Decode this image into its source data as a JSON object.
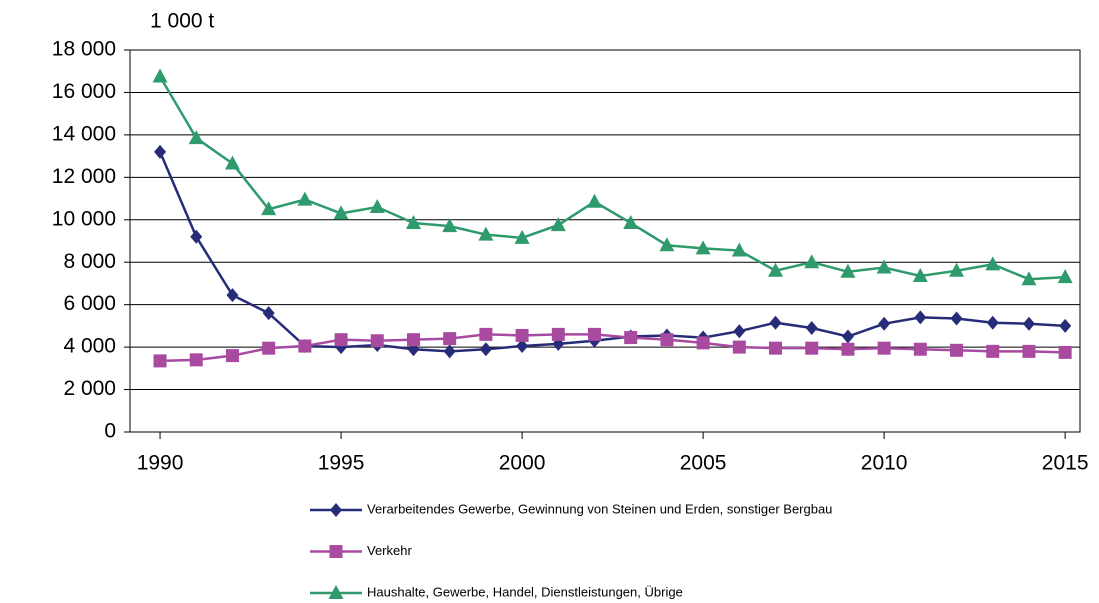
{
  "chart_data": {
    "type": "line",
    "unit_label": "1 000 t",
    "x": [
      1990,
      1991,
      1992,
      1993,
      1994,
      1995,
      1996,
      1997,
      1998,
      1999,
      2000,
      2001,
      2002,
      2003,
      2004,
      2005,
      2006,
      2007,
      2008,
      2009,
      2010,
      2011,
      2012,
      2013,
      2014,
      2015
    ],
    "xlim": [
      1989.17,
      2015.41
    ],
    "xticks": [
      1990,
      1995,
      2000,
      2005,
      2010,
      2015
    ],
    "ylim": [
      0,
      18000
    ],
    "yticks": [
      0,
      {
        "value": 2000,
        "label": "2 000"
      },
      {
        "value": 4000,
        "label": "4 000"
      },
      {
        "value": 6000,
        "label": "6 000"
      },
      {
        "value": 8000,
        "label": "8 000"
      },
      {
        "value": 10000,
        "label": "10 000"
      },
      {
        "value": 12000,
        "label": "12 000"
      },
      {
        "value": 14000,
        "label": "14 000"
      },
      {
        "value": 16000,
        "label": "16 000"
      },
      {
        "value": 18000,
        "label": "18 000"
      }
    ],
    "grid": true,
    "series": [
      {
        "name": "Verarbeitendes Gewerbe, Gewinnung von Steinen und Erden, sonstiger Bergbau",
        "color": "#262c78",
        "marker": "diamond",
        "values": [
          13200,
          9200,
          6450,
          5600,
          4050,
          4000,
          4100,
          3900,
          3800,
          3900,
          4050,
          4150,
          4300,
          4500,
          4550,
          4450,
          4750,
          5150,
          4900,
          4500,
          5100,
          5400,
          5350,
          5150,
          5100,
          5000
        ]
      },
      {
        "name": "Verkehr",
        "color": "#a84aa0",
        "marker": "square",
        "values": [
          3350,
          3400,
          3600,
          3950,
          4050,
          4350,
          4300,
          4350,
          4400,
          4600,
          4550,
          4600,
          4600,
          4450,
          4350,
          4200,
          4000,
          3950,
          3950,
          3900,
          3950,
          3900,
          3850,
          3800,
          3800,
          3750
        ]
      },
      {
        "name": "Haushalte, Gewerbe, Handel, Dienstleistungen, Übrige",
        "color": "#2f9a6c",
        "marker": "triangle",
        "values": [
          16750,
          13850,
          12650,
          10500,
          10950,
          10300,
          10600,
          9850,
          9700,
          9300,
          9150,
          9750,
          10850,
          9850,
          8800,
          8650,
          8550,
          7600,
          8000,
          7550,
          7750,
          7350,
          7600,
          7900,
          7200,
          7300
        ]
      }
    ]
  }
}
